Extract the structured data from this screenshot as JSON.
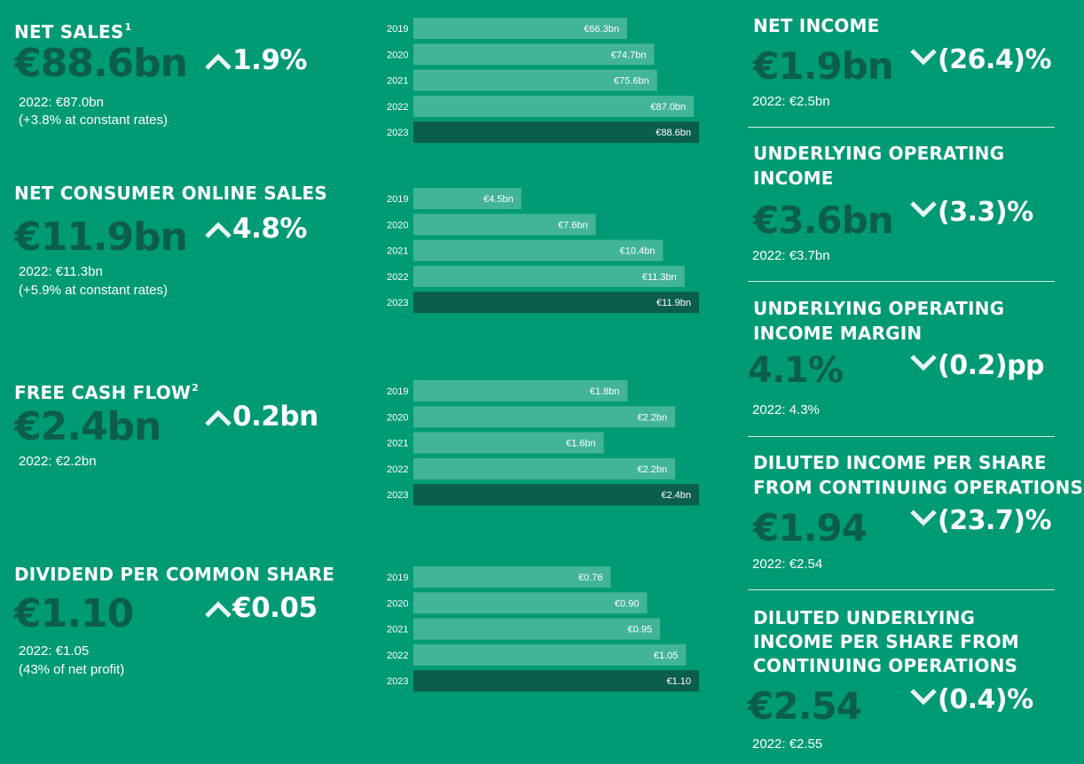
{
  "left_kpis": [
    {
      "title": "NET SALES",
      "footnote": "1",
      "value": "€88.6bn",
      "change": "1.9%",
      "direction": "up",
      "notes": [
        "2022: €87.0bn",
        "(+3.8% at constant rates)"
      ]
    },
    {
      "title": "NET CONSUMER ONLINE SALES",
      "footnote": "",
      "value": "€11.9bn",
      "change": "4.8%",
      "direction": "up",
      "notes": [
        "2022: €11.3bn",
        "(+5.9% at constant rates)"
      ]
    },
    {
      "title": "FREE CASH FLOW",
      "footnote": "2",
      "value": "€2.4bn",
      "change": "0.2bn",
      "direction": "up",
      "notes": [
        "2022: €2.2bn"
      ]
    },
    {
      "title": "DIVIDEND PER COMMON SHARE",
      "footnote": "",
      "value": "€1.10",
      "change": "€0.05",
      "direction": "up",
      "notes": [
        "2022: €1.05",
        "(43% of net profit)"
      ]
    }
  ],
  "right_kpis": [
    {
      "title_lines": [
        "NET INCOME"
      ],
      "value": "€1.9bn",
      "change": "(26.4)%",
      "direction": "down",
      "note": "2022: €2.5bn"
    },
    {
      "title_lines": [
        "UNDERLYING OPERATING",
        "INCOME"
      ],
      "value": "€3.6bn",
      "change": "(3.3)%",
      "direction": "down",
      "note": "2022: €3.7bn"
    },
    {
      "title_lines": [
        "UNDERLYING OPERATING",
        "INCOME MARGIN"
      ],
      "value": "4.1%",
      "change": "(0.2)pp",
      "direction": "down",
      "note": "2022: 4.3%"
    },
    {
      "title_lines": [
        "DILUTED INCOME PER SHARE",
        "FROM CONTINUING OPERATIONS"
      ],
      "value": "€1.94",
      "change": "(23.7)%",
      "direction": "down",
      "note": "2022: €2.54"
    },
    {
      "title_lines": [
        "DILUTED UNDERLYING",
        "INCOME PER SHARE FROM",
        "CONTINUING OPERATIONS"
      ],
      "value": "€2.54",
      "change": "(0.4)%",
      "direction": "down",
      "note": "2022: €2.55"
    }
  ],
  "colors": {
    "background": "#009a74",
    "bar_past": "#42b498",
    "bar_current": "#0c5e4c",
    "value_text": "#0c5e4c",
    "text": "#ffffff"
  },
  "chart_data": [
    {
      "type": "bar",
      "orientation": "horizontal",
      "categories": [
        "2019",
        "2020",
        "2021",
        "2022",
        "2023"
      ],
      "values": [
        66.3,
        74.7,
        75.6,
        87.0,
        88.6
      ],
      "labels": [
        "€66.3bn",
        "€74.7bn",
        "€75.6bn",
        "€87.0bn",
        "€88.6bn"
      ],
      "highlight": "2023"
    },
    {
      "type": "bar",
      "orientation": "horizontal",
      "categories": [
        "2019",
        "2020",
        "2021",
        "2022",
        "2023"
      ],
      "values": [
        4.5,
        7.6,
        10.4,
        11.3,
        11.9
      ],
      "labels": [
        "€4.5bn",
        "€7.6bn",
        "€10.4bn",
        "€11.3bn",
        "€11.9bn"
      ],
      "highlight": "2023"
    },
    {
      "type": "bar",
      "orientation": "horizontal",
      "categories": [
        "2019",
        "2020",
        "2021",
        "2022",
        "2023"
      ],
      "values": [
        1.8,
        2.2,
        1.6,
        2.2,
        2.4
      ],
      "labels": [
        "€1.8bn",
        "€2.2bn",
        "€1.6bn",
        "€2.2bn",
        "€2.4bn"
      ],
      "highlight": "2023"
    },
    {
      "type": "bar",
      "orientation": "horizontal",
      "categories": [
        "2019",
        "2020",
        "2021",
        "2022",
        "2023"
      ],
      "values": [
        0.76,
        0.9,
        0.95,
        1.05,
        1.1
      ],
      "labels": [
        "€0.76",
        "€0.90",
        "€0.95",
        "€1.05",
        "€1.10"
      ],
      "highlight": "2023"
    }
  ]
}
